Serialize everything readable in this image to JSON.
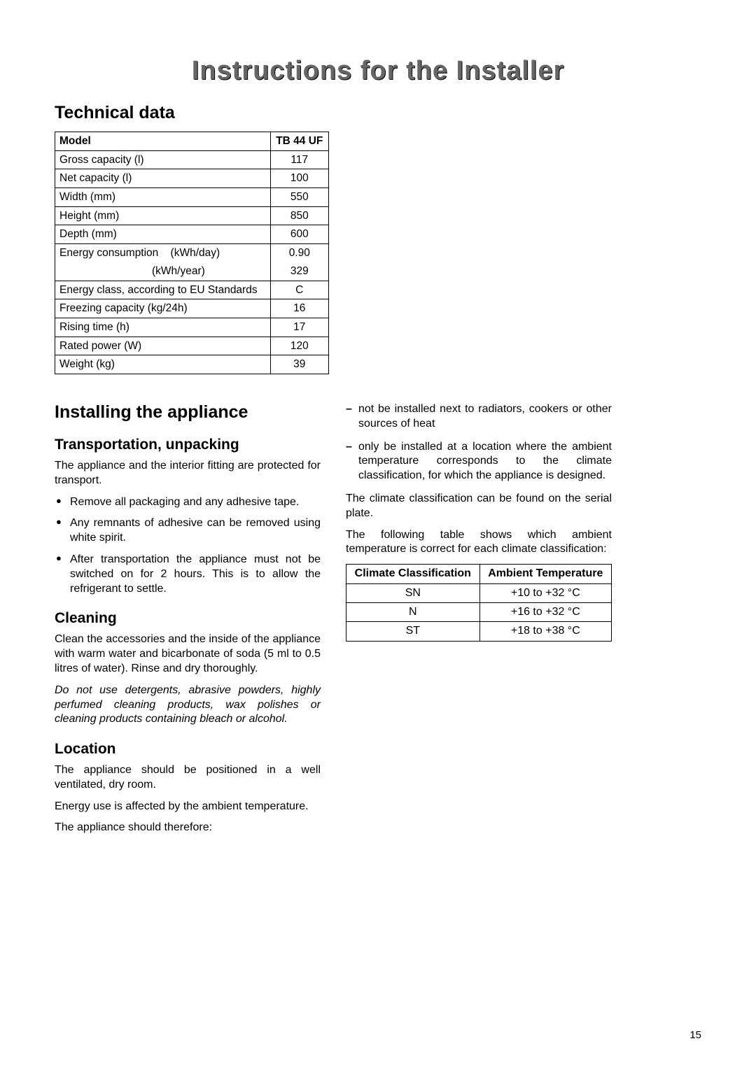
{
  "page_title": "Instructions for the Installer",
  "tech": {
    "heading": "Technical data",
    "header_left": "Model",
    "header_right": "TB 44 UF",
    "rows": [
      {
        "label": "Gross capacity (l)",
        "value": "117"
      },
      {
        "label": "Net capacity (l)",
        "value": "100"
      },
      {
        "label": "Width (mm)",
        "value": "550"
      },
      {
        "label": "Height (mm)",
        "value": "850"
      },
      {
        "label": "Depth (mm)",
        "value": "600"
      }
    ],
    "energy_label_main": "Energy consumption",
    "energy_label_day": "(kWh/day)",
    "energy_value_day": "0.90",
    "energy_label_year": "(kWh/year)",
    "energy_value_year": "329",
    "rows2": [
      {
        "label": "Energy class, according to EU Standards",
        "value": "C"
      },
      {
        "label": "Freezing capacity (kg/24h)",
        "value": "16"
      },
      {
        "label": "Rising time (h)",
        "value": "17"
      },
      {
        "label": "Rated power (W)",
        "value": "120"
      },
      {
        "label": "Weight (kg)",
        "value": "39"
      }
    ]
  },
  "install": {
    "heading": "Installing the appliance",
    "transport_h": "Transportation, unpacking",
    "transport_p": "The appliance and the interior fitting are protected for transport.",
    "transport_items": [
      "Remove all packaging and any adhesive tape.",
      "Any remnants of adhesive can be removed using white spirit.",
      "After transportation the appliance must not be switched on for 2 hours. This is to allow the refrigerant to settle."
    ],
    "cleaning_h": "Cleaning",
    "cleaning_p": "Clean the accessories and the inside of the appliance with warm water and bicarbonate of soda (5 ml to 0.5 litres of water). Rinse and dry thoroughly.",
    "cleaning_warn": "Do not use detergents, abrasive powders, highly perfumed cleaning products, wax polishes or cleaning products containing bleach or alcohol.",
    "location_h": "Location",
    "location_p1": "The appliance should be positioned in a well ventilated, dry room.",
    "location_p2": "Energy use is affected by the ambient temperature.",
    "location_p3": "The appliance should therefore:",
    "location_items": [
      "not be installed next to radiators, cookers or other sources of heat",
      "only be installed at a location where the ambient temperature corresponds to the climate classification, for which the appliance is designed."
    ],
    "climate_p1": "The climate classification can be found on the serial plate.",
    "climate_p2": "The following table shows which ambient temperature is correct for each climate classification:"
  },
  "climate_table": {
    "col1": "Climate Classification",
    "col2": "Ambient Temperature",
    "rows": [
      {
        "c": "SN",
        "t": "+10 to +32 °C"
      },
      {
        "c": "N",
        "t": "+16 to +32 °C"
      },
      {
        "c": "ST",
        "t": "+18 to +38 °C"
      }
    ]
  },
  "page_number": "15"
}
